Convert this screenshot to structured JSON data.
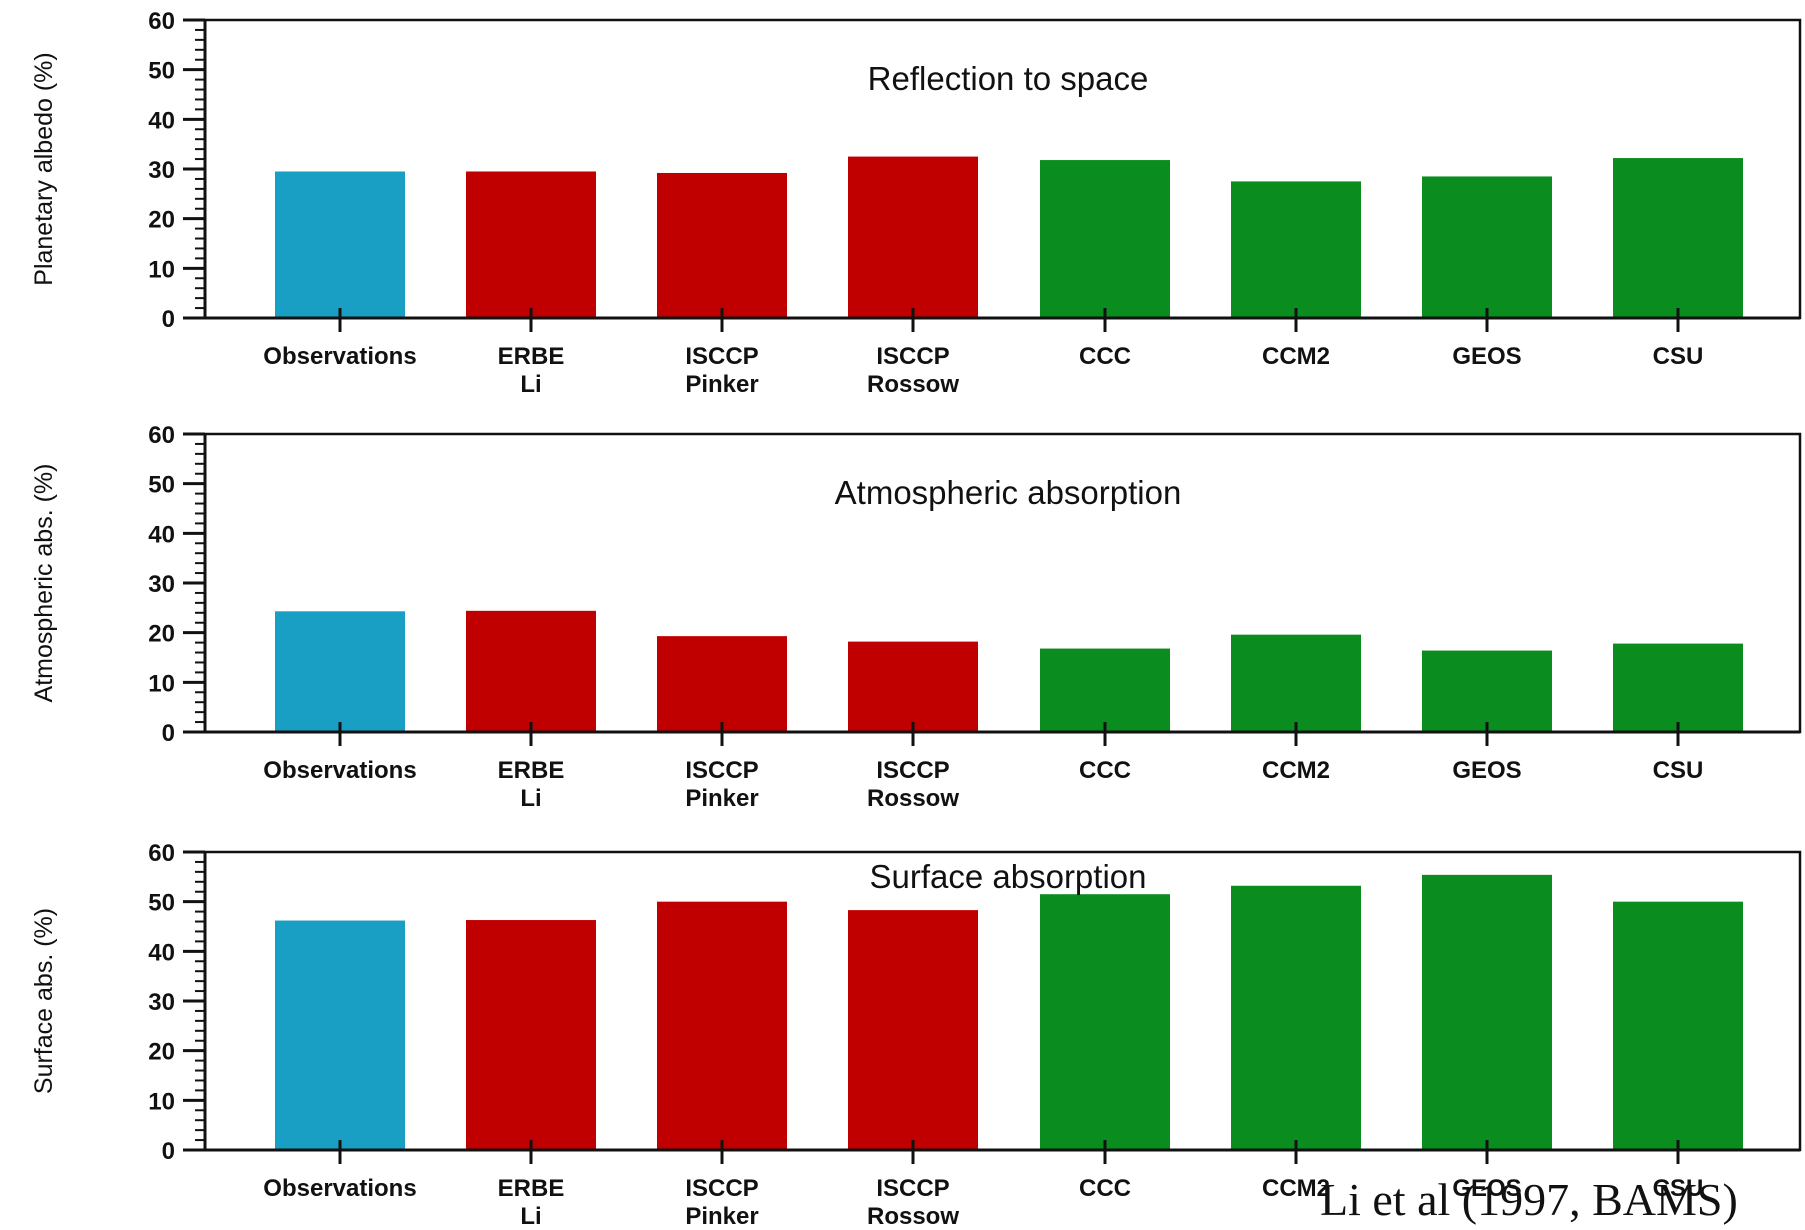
{
  "chart_data": [
    {
      "type": "bar",
      "title": "Reflection to space",
      "ylabel": "Planetary albedo (%)",
      "ylim": [
        0,
        60
      ],
      "yticks": [
        0,
        10,
        20,
        30,
        40,
        50,
        60
      ],
      "grid": false,
      "categories": [
        "Observations",
        "ERBE\nLi",
        "ISCCP\nPinker",
        "ISCCP\nRossow",
        "CCC",
        "CCM2",
        "GEOS",
        "CSU"
      ],
      "values": [
        29.5,
        29.5,
        29.2,
        32.5,
        31.8,
        27.5,
        28.5,
        32.2
      ],
      "bar_colors": [
        "#1a9fc4",
        "#c00000",
        "#c00000",
        "#c00000",
        "#0a8c1e",
        "#0a8c1e",
        "#0a8c1e",
        "#0a8c1e"
      ]
    },
    {
      "type": "bar",
      "title": "Atmospheric absorption",
      "ylabel": "Atmospheric abs. (%)",
      "ylim": [
        0,
        60
      ],
      "yticks": [
        0,
        10,
        20,
        30,
        40,
        50,
        60
      ],
      "grid": false,
      "categories": [
        "Observations",
        "ERBE\nLi",
        "ISCCP\nPinker",
        "ISCCP\nRossow",
        "CCC",
        "CCM2",
        "GEOS",
        "CSU"
      ],
      "values": [
        24.3,
        24.4,
        19.3,
        18.2,
        16.8,
        19.6,
        16.4,
        17.8
      ],
      "bar_colors": [
        "#1a9fc4",
        "#c00000",
        "#c00000",
        "#c00000",
        "#0a8c1e",
        "#0a8c1e",
        "#0a8c1e",
        "#0a8c1e"
      ]
    },
    {
      "type": "bar",
      "title": "Surface absorption",
      "ylabel": "Surface abs. (%)",
      "ylim": [
        0,
        60
      ],
      "yticks": [
        0,
        10,
        20,
        30,
        40,
        50,
        60
      ],
      "grid": false,
      "categories": [
        "Observations",
        "ERBE\nLi",
        "ISCCP\nPinker",
        "ISCCP\nRossow",
        "CCC",
        "CCM2",
        "GEOS",
        "CSU"
      ],
      "values": [
        46.2,
        46.3,
        50.0,
        48.3,
        51.5,
        53.2,
        55.4,
        50.0
      ],
      "bar_colors": [
        "#1a9fc4",
        "#c00000",
        "#c00000",
        "#c00000",
        "#0a8c1e",
        "#0a8c1e",
        "#0a8c1e",
        "#0a8c1e"
      ]
    }
  ],
  "citation": "Li et al (1997, BAMS)"
}
